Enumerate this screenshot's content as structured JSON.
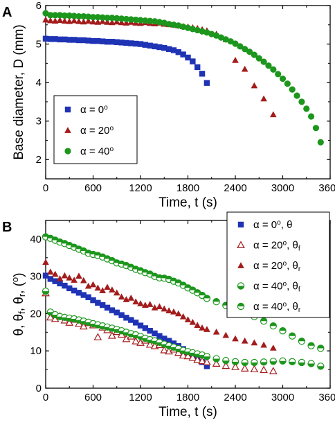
{
  "chart_data": [
    {
      "panel_label": "A",
      "type": "scatter",
      "xlabel": "Time, t (s)",
      "ylabel": "Base diameter, D (mm)",
      "xlim": [
        0,
        3600
      ],
      "ylim": [
        1.5,
        6
      ],
      "xticks": [
        "0",
        "600",
        "1200",
        "1800",
        "2400",
        "3000",
        "3600"
      ],
      "yticks": [
        "2",
        "3",
        "4",
        "5",
        "6"
      ],
      "legend": "bottom-left",
      "series": [
        {
          "name": "α = 0°",
          "marker": "square",
          "color": "#1f33b5",
          "x": [
            0,
            60,
            120,
            180,
            240,
            300,
            360,
            420,
            480,
            540,
            600,
            660,
            720,
            780,
            840,
            900,
            960,
            1020,
            1080,
            1140,
            1200,
            1260,
            1320,
            1380,
            1440,
            1500,
            1560,
            1620,
            1680,
            1740,
            1800,
            1860,
            1920,
            1980,
            2040
          ],
          "y": [
            5.14,
            5.13,
            5.13,
            5.12,
            5.12,
            5.11,
            5.11,
            5.1,
            5.1,
            5.09,
            5.08,
            5.08,
            5.07,
            5.06,
            5.06,
            5.05,
            5.04,
            5.03,
            5.02,
            5.01,
            5.0,
            4.98,
            4.96,
            4.94,
            4.92,
            4.9,
            4.87,
            4.84,
            4.79,
            4.73,
            4.65,
            4.55,
            4.4,
            4.23,
            3.99
          ]
        },
        {
          "name": "α = 20°",
          "marker": "triangle",
          "color": "#a31c1c",
          "x": [
            0,
            60,
            120,
            180,
            240,
            300,
            360,
            420,
            480,
            540,
            600,
            660,
            720,
            780,
            840,
            900,
            960,
            1020,
            1080,
            1140,
            1200,
            1260,
            1320,
            1380,
            1440,
            1500,
            1560,
            1620,
            1680,
            1740,
            1800,
            1860,
            1920,
            1980,
            2040,
            2160,
            2280,
            2400,
            2520,
            2640,
            2760,
            2880
          ],
          "y": [
            5.63,
            5.61,
            5.6,
            5.62,
            5.6,
            5.59,
            5.61,
            5.59,
            5.58,
            5.6,
            5.58,
            5.57,
            5.59,
            5.57,
            5.56,
            5.58,
            5.56,
            5.55,
            5.57,
            5.55,
            5.54,
            5.56,
            5.54,
            5.53,
            5.55,
            5.52,
            5.51,
            5.5,
            5.48,
            5.46,
            5.45,
            5.43,
            5.41,
            5.38,
            5.35,
            5.26,
            5.12,
            4.58,
            4.35,
            3.92,
            3.58,
            3.17
          ]
        },
        {
          "name": "α = 40°",
          "marker": "circle",
          "color": "#1c961c",
          "x": [
            0,
            60,
            120,
            180,
            240,
            300,
            360,
            420,
            480,
            540,
            600,
            660,
            720,
            780,
            840,
            900,
            960,
            1020,
            1080,
            1140,
            1200,
            1260,
            1320,
            1380,
            1440,
            1500,
            1560,
            1620,
            1680,
            1740,
            1800,
            1860,
            1920,
            1980,
            2040,
            2100,
            2160,
            2220,
            2280,
            2340,
            2400,
            2460,
            2520,
            2580,
            2640,
            2700,
            2760,
            2820,
            2880,
            2940,
            3000,
            3060,
            3120,
            3180,
            3240,
            3300,
            3360,
            3420,
            3480
          ],
          "y": [
            5.8,
            5.75,
            5.75,
            5.75,
            5.74,
            5.74,
            5.73,
            5.72,
            5.72,
            5.71,
            5.7,
            5.7,
            5.69,
            5.68,
            5.68,
            5.67,
            5.66,
            5.65,
            5.64,
            5.63,
            5.62,
            5.61,
            5.6,
            5.59,
            5.57,
            5.55,
            5.52,
            5.5,
            5.48,
            5.45,
            5.42,
            5.39,
            5.36,
            5.33,
            5.3,
            5.26,
            5.22,
            5.17,
            5.12,
            5.07,
            5.01,
            4.94,
            4.87,
            4.8,
            4.72,
            4.63,
            4.54,
            4.44,
            4.34,
            4.22,
            4.1,
            3.97,
            3.82,
            3.66,
            3.5,
            3.32,
            3.12,
            2.82,
            2.45
          ]
        }
      ]
    },
    {
      "panel_label": "B",
      "type": "scatter",
      "xlabel": "Time, t (s)",
      "ylabel_parts": [
        "θ, θ",
        "f",
        ", θ",
        "r",
        ", (",
        "o",
        ")"
      ],
      "xlim": [
        0,
        3600
      ],
      "ylim": [
        0,
        45
      ],
      "xticks": [
        "0",
        "600",
        "1200",
        "1800",
        "2400",
        "3000",
        "3600"
      ],
      "yticks": [
        "0",
        "10",
        "20",
        "30",
        "40"
      ],
      "legend": "top-right",
      "series": [
        {
          "name": "α = 0°, θ",
          "label_parts": [
            "α = 0",
            "o",
            ", θ",
            ""
          ],
          "marker": "square",
          "color": "#1f33b5",
          "x": [
            0,
            60,
            120,
            180,
            240,
            300,
            360,
            420,
            480,
            540,
            600,
            660,
            720,
            780,
            840,
            900,
            960,
            1020,
            1080,
            1140,
            1200,
            1260,
            1320,
            1380,
            1440,
            1500,
            1560,
            1620,
            1680,
            1740,
            1800,
            1860,
            1920,
            1980,
            2040
          ],
          "y": [
            30.2,
            29.3,
            28.7,
            28.1,
            27.5,
            26.8,
            26.2,
            25.6,
            25.0,
            24.4,
            23.6,
            22.9,
            22.3,
            21.6,
            20.9,
            20.3,
            19.6,
            18.9,
            18.3,
            17.6,
            16.8,
            16.1,
            15.4,
            14.7,
            14.0,
            13.3,
            12.7,
            12.0,
            11.3,
            10.5,
            9.6,
            8.8,
            7.9,
            7.0,
            5.9
          ]
        },
        {
          "name": "α = 20°, θf",
          "label_parts": [
            "α = 20",
            "o",
            ", θ",
            "f"
          ],
          "marker": "triangle-open",
          "color": "#a31c1c",
          "x": [
            0,
            60,
            120,
            180,
            240,
            300,
            360,
            420,
            480,
            540,
            600,
            660,
            720,
            780,
            840,
            900,
            960,
            1020,
            1080,
            1140,
            1200,
            1260,
            1320,
            1380,
            1440,
            1500,
            1560,
            1620,
            1680,
            1740,
            1800,
            1860,
            1920,
            1980,
            2040,
            2160,
            2280,
            2400,
            2520,
            2640,
            2760,
            2880
          ],
          "y": [
            25.5,
            19.0,
            18.6,
            19.3,
            18.2,
            17.6,
            18.4,
            17.3,
            16.6,
            17.5,
            16.9,
            13.7,
            16.3,
            15.6,
            14.1,
            15.1,
            14.4,
            13.2,
            13.9,
            12.6,
            12.2,
            12.8,
            11.7,
            11.3,
            11.6,
            10.2,
            9.9,
            10.4,
            9.5,
            8.8,
            8.6,
            8.2,
            7.6,
            7.3,
            7.0,
            6.6,
            6.0,
            5.7,
            5.3,
            5.1,
            4.9,
            4.6
          ]
        },
        {
          "name": "α = 20°, θr",
          "label_parts": [
            "α = 20",
            "o",
            ", θ",
            "r"
          ],
          "marker": "triangle",
          "color": "#a31c1c",
          "x": [
            0,
            60,
            120,
            180,
            240,
            300,
            360,
            420,
            480,
            540,
            600,
            660,
            720,
            780,
            840,
            900,
            960,
            1020,
            1080,
            1140,
            1200,
            1260,
            1320,
            1380,
            1440,
            1500,
            1560,
            1620,
            1680,
            1740,
            1800,
            1860,
            1920,
            1980,
            2040,
            2160,
            2280,
            2400,
            2520,
            2640,
            2760,
            2880
          ],
          "y": [
            33.8,
            31.2,
            30.6,
            29.4,
            30.2,
            29.6,
            29.0,
            30.1,
            28.9,
            27.4,
            27.8,
            26.9,
            26.2,
            27.1,
            26.4,
            25.6,
            24.5,
            23.8,
            24.2,
            23.2,
            22.7,
            22.3,
            22.5,
            21.6,
            21.9,
            21.3,
            20.8,
            20.5,
            20.0,
            19.2,
            18.4,
            17.7,
            16.9,
            16.2,
            15.8,
            15.1,
            14.2,
            13.3,
            12.7,
            12.2,
            11.6,
            10.8
          ]
        },
        {
          "name": "α = 40°, θf",
          "label_parts": [
            "α = 40",
            "o",
            ", θ",
            "f"
          ],
          "marker": "circle-bottom-half",
          "color": "#1c961c",
          "x": [
            0,
            60,
            120,
            180,
            240,
            300,
            360,
            420,
            480,
            540,
            600,
            660,
            720,
            780,
            840,
            900,
            960,
            1020,
            1080,
            1140,
            1200,
            1260,
            1320,
            1380,
            1440,
            1500,
            1560,
            1620,
            1680,
            1740,
            1800,
            1860,
            1920,
            1980,
            2040,
            2160,
            2280,
            2400,
            2520,
            2640,
            2760,
            2880,
            3000,
            3120,
            3240,
            3360,
            3480
          ],
          "y": [
            26.0,
            20.4,
            19.7,
            19.2,
            19.0,
            18.8,
            18.6,
            18.3,
            18.0,
            17.7,
            17.3,
            17.0,
            16.7,
            16.4,
            16.1,
            15.8,
            15.4,
            15.0,
            14.6,
            14.3,
            13.9,
            13.4,
            13.0,
            12.7,
            12.3,
            11.8,
            11.4,
            11.0,
            10.6,
            10.1,
            9.8,
            9.5,
            9.2,
            8.9,
            8.5,
            7.9,
            7.4,
            7.1,
            6.9,
            6.9,
            7.0,
            7.2,
            7.3,
            7.1,
            6.9,
            6.6,
            5.9
          ]
        },
        {
          "name": "α = 40°, θr",
          "label_parts": [
            "α = 40",
            "o",
            ", θ",
            "r"
          ],
          "marker": "circle-top-half",
          "color": "#1c961c",
          "x": [
            0,
            60,
            120,
            180,
            240,
            300,
            360,
            420,
            480,
            540,
            600,
            660,
            720,
            780,
            840,
            900,
            960,
            1020,
            1080,
            1140,
            1200,
            1260,
            1320,
            1380,
            1440,
            1500,
            1560,
            1620,
            1680,
            1740,
            1800,
            1860,
            1920,
            1980,
            2040,
            2160,
            2280,
            2400,
            2520,
            2640,
            2760,
            2880,
            3000,
            3120,
            3240,
            3360,
            3480
          ],
          "y": [
            40.6,
            40.2,
            39.7,
            39.2,
            38.8,
            38.3,
            37.8,
            37.3,
            36.8,
            36.2,
            35.9,
            35.6,
            35.2,
            34.7,
            34.2,
            33.6,
            33.3,
            32.9,
            32.4,
            31.9,
            31.5,
            31.0,
            30.6,
            30.0,
            29.6,
            29.5,
            29.2,
            28.7,
            28.2,
            27.6,
            26.9,
            26.3,
            25.6,
            24.9,
            24.1,
            23.2,
            22.2,
            21.3,
            20.3,
            19.2,
            18.0,
            16.7,
            15.4,
            14.0,
            12.6,
            11.4,
            10.7
          ]
        }
      ]
    }
  ]
}
